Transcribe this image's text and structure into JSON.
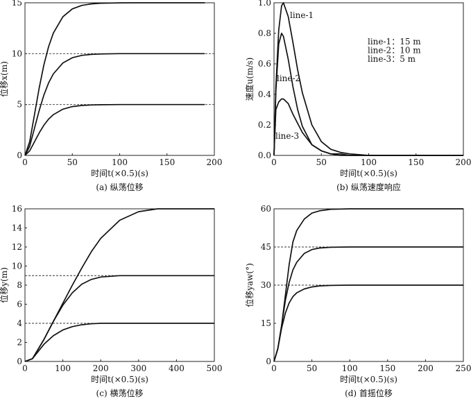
{
  "chart_data": [
    {
      "type": "line",
      "caption": "(a) 纵荡位移",
      "xlabel": "时间t(×0.5)(s)",
      "ylabel": "位移x(m)",
      "xlim": [
        0,
        200
      ],
      "ylim": [
        0,
        15
      ],
      "xticks": [
        0,
        50,
        100,
        150,
        200
      ],
      "yticks": [
        0,
        5,
        10,
        15
      ],
      "grid": false,
      "reference_lines": [
        10,
        5
      ],
      "x": [
        0,
        5,
        10,
        15,
        20,
        25,
        30,
        40,
        50,
        60,
        70,
        80,
        100,
        120,
        150,
        190
      ],
      "series": [
        {
          "name": "15 m",
          "values": [
            0,
            1.35,
            3.96,
            6.63,
            8.91,
            10.7,
            12.02,
            13.62,
            14.4,
            14.74,
            14.89,
            14.95,
            14.99,
            15,
            15,
            15
          ]
        },
        {
          "name": "10 m",
          "values": [
            0,
            0.9,
            2.64,
            4.42,
            5.94,
            7.13,
            8.01,
            9.08,
            9.6,
            9.83,
            9.93,
            9.97,
            10,
            10,
            10,
            10
          ]
        },
        {
          "name": "5 m",
          "values": [
            0,
            0.45,
            1.32,
            2.21,
            2.97,
            3.57,
            4.0,
            4.54,
            4.8,
            4.91,
            4.96,
            4.98,
            5,
            5,
            5,
            5
          ]
        }
      ]
    },
    {
      "type": "line",
      "caption": "(b) 纵荡速度响应",
      "xlabel": "时间t(×0.5)(s)",
      "ylabel": "速度u(m/s)",
      "xlim": [
        0,
        200
      ],
      "ylim": [
        0,
        1.0
      ],
      "xticks": [
        0,
        50,
        100,
        150,
        200
      ],
      "yticks": [
        0.0,
        0.2,
        0.4,
        0.6,
        0.8,
        1.0
      ],
      "ytick_decimals": 1,
      "grid": false,
      "reference_lines": [],
      "legend": [
        "line-1：15 m",
        "line-2：10 m",
        "line-3：5 m"
      ],
      "legend_position": "upper-right",
      "annotations": [
        "line-1",
        "line-2",
        "line-3"
      ],
      "x": [
        0,
        2,
        5,
        8,
        10,
        15,
        20,
        25,
        30,
        40,
        50,
        60,
        70,
        80,
        100,
        150,
        200
      ],
      "series": [
        {
          "name": "line-1",
          "values": [
            0,
            0.45,
            0.82,
            0.98,
            1.0,
            0.91,
            0.74,
            0.56,
            0.41,
            0.2,
            0.09,
            0.04,
            0.02,
            0.01,
            0,
            0,
            0
          ]
        },
        {
          "name": "line-2",
          "values": [
            0,
            0.42,
            0.73,
            0.8,
            0.78,
            0.63,
            0.45,
            0.3,
            0.19,
            0.07,
            0.03,
            0.01,
            0,
            0,
            0,
            0,
            0
          ]
        },
        {
          "name": "line-3",
          "values": [
            0,
            0.3,
            0.35,
            0.37,
            0.37,
            0.34,
            0.27,
            0.21,
            0.15,
            0.07,
            0.03,
            0.01,
            0.01,
            0,
            0,
            0,
            0
          ]
        }
      ]
    },
    {
      "type": "line",
      "caption": "(c) 横荡位移",
      "xlabel": "时间t(×0.5)(s)",
      "ylabel": "位移y(m)",
      "xlim": [
        0,
        500
      ],
      "ylim": [
        0,
        16
      ],
      "xticks": [
        0,
        100,
        200,
        300,
        400,
        500
      ],
      "yticks": [
        0,
        2,
        4,
        6,
        8,
        10,
        12,
        14,
        16
      ],
      "grid": false,
      "reference_lines": [
        9,
        4
      ],
      "x": [
        0,
        20,
        50,
        75,
        100,
        125,
        150,
        175,
        200,
        250,
        300,
        350,
        400,
        500
      ],
      "series": [
        {
          "name": "16 m",
          "values": [
            0,
            0.3,
            2.3,
            4.2,
            6.1,
            8.0,
            9.8,
            11.5,
            12.9,
            14.8,
            15.7,
            16,
            16,
            16
          ]
        },
        {
          "name": "9 m",
          "values": [
            0,
            0.3,
            2.3,
            4.2,
            5.9,
            7.2,
            8.1,
            8.6,
            8.85,
            9,
            9,
            9,
            9,
            9
          ]
        },
        {
          "name": "4 m",
          "values": [
            0,
            0.3,
            1.8,
            2.7,
            3.3,
            3.65,
            3.85,
            3.95,
            4,
            4,
            4,
            4,
            4,
            4
          ]
        }
      ]
    },
    {
      "type": "line",
      "caption": "(d) 首摇位移",
      "xlabel": "时间t(×0.5)(s)",
      "ylabel": "位移yaw(°)",
      "xlim": [
        0,
        250
      ],
      "ylim": [
        0,
        60
      ],
      "xticks": [
        0,
        50,
        100,
        150,
        200,
        250
      ],
      "yticks": [
        0,
        15,
        30,
        45,
        60
      ],
      "grid": false,
      "reference_lines": [
        45,
        30
      ],
      "x": [
        0,
        5,
        10,
        15,
        20,
        25,
        30,
        40,
        50,
        60,
        75,
        100,
        150,
        250
      ],
      "series": [
        {
          "name": "60°",
          "values": [
            0,
            5,
            14,
            26,
            38,
            47,
            51.5,
            56,
            58.3,
            59.2,
            59.8,
            60,
            60,
            60
          ]
        },
        {
          "name": "45°",
          "values": [
            0,
            5,
            14,
            24,
            31,
            36,
            39,
            42.5,
            44,
            44.6,
            44.9,
            45,
            45,
            45
          ]
        },
        {
          "name": "30°",
          "values": [
            0,
            5,
            13,
            19,
            23,
            25.5,
            27,
            28.5,
            29.3,
            29.7,
            29.9,
            30,
            30,
            30
          ]
        }
      ]
    }
  ]
}
